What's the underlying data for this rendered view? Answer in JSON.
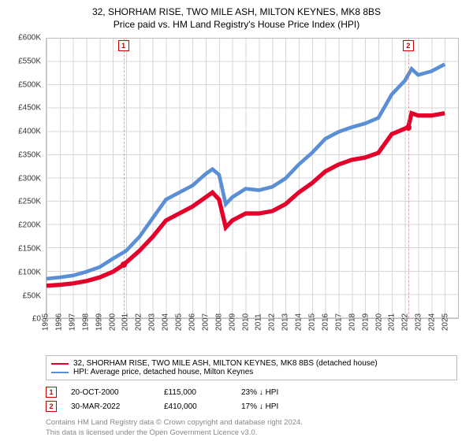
{
  "title": {
    "line1": "32, SHORHAM RISE, TWO MILE ASH, MILTON KEYNES, MK8 8BS",
    "line2": "Price paid vs. HM Land Registry's House Price Index (HPI)"
  },
  "chart": {
    "type": "line",
    "background_color": "#ffffff",
    "grid_color": "#d6d6d6",
    "border_color": "#bdbdbd",
    "ylim": [
      0,
      600000
    ],
    "ytick_step": 50000,
    "y_labels": [
      "£0",
      "£50K",
      "£100K",
      "£150K",
      "£200K",
      "£250K",
      "£300K",
      "£350K",
      "£400K",
      "£450K",
      "£500K",
      "£550K",
      "£600K"
    ],
    "xlim": [
      1995,
      2026
    ],
    "x_labels": [
      "1995",
      "1996",
      "1997",
      "1998",
      "1999",
      "2000",
      "2001",
      "2002",
      "2003",
      "2004",
      "2005",
      "2006",
      "2007",
      "2008",
      "2009",
      "2010",
      "2011",
      "2012",
      "2013",
      "2014",
      "2015",
      "2016",
      "2017",
      "2018",
      "2019",
      "2020",
      "2021",
      "2022",
      "2023",
      "2024",
      "2025"
    ],
    "series": [
      {
        "key": "property",
        "label": "32, SHORHAM RISE, TWO MILE ASH, MILTON KEYNES, MK8 8BS (detached house)",
        "color": "#e4002b",
        "line_width": 1.6,
        "data": [
          [
            1995,
            70000
          ],
          [
            1996,
            72000
          ],
          [
            1997,
            75000
          ],
          [
            1998,
            80000
          ],
          [
            1999,
            88000
          ],
          [
            2000,
            100000
          ],
          [
            2000.8,
            115000
          ],
          [
            2001,
            120000
          ],
          [
            2002,
            145000
          ],
          [
            2003,
            175000
          ],
          [
            2004,
            210000
          ],
          [
            2005,
            225000
          ],
          [
            2006,
            240000
          ],
          [
            2007,
            260000
          ],
          [
            2007.5,
            270000
          ],
          [
            2008,
            255000
          ],
          [
            2008.5,
            195000
          ],
          [
            2009,
            210000
          ],
          [
            2010,
            225000
          ],
          [
            2011,
            225000
          ],
          [
            2012,
            230000
          ],
          [
            2013,
            245000
          ],
          [
            2014,
            270000
          ],
          [
            2015,
            290000
          ],
          [
            2016,
            315000
          ],
          [
            2017,
            330000
          ],
          [
            2018,
            340000
          ],
          [
            2019,
            345000
          ],
          [
            2020,
            355000
          ],
          [
            2021,
            395000
          ],
          [
            2022.25,
            410000
          ],
          [
            2022.5,
            440000
          ],
          [
            2023,
            435000
          ],
          [
            2024,
            435000
          ],
          [
            2025,
            440000
          ]
        ]
      },
      {
        "key": "hpi",
        "label": "HPI: Average price, detached house, Milton Keynes",
        "color": "#5a8fd6",
        "line_width": 1.4,
        "data": [
          [
            1995,
            85000
          ],
          [
            1996,
            88000
          ],
          [
            1997,
            92000
          ],
          [
            1998,
            100000
          ],
          [
            1999,
            110000
          ],
          [
            2000,
            128000
          ],
          [
            2001,
            145000
          ],
          [
            2002,
            175000
          ],
          [
            2003,
            215000
          ],
          [
            2004,
            255000
          ],
          [
            2005,
            270000
          ],
          [
            2006,
            285000
          ],
          [
            2007,
            310000
          ],
          [
            2007.5,
            320000
          ],
          [
            2008,
            308000
          ],
          [
            2008.5,
            245000
          ],
          [
            2009,
            260000
          ],
          [
            2010,
            278000
          ],
          [
            2011,
            275000
          ],
          [
            2012,
            282000
          ],
          [
            2013,
            300000
          ],
          [
            2014,
            330000
          ],
          [
            2015,
            355000
          ],
          [
            2016,
            385000
          ],
          [
            2017,
            400000
          ],
          [
            2018,
            410000
          ],
          [
            2019,
            418000
          ],
          [
            2020,
            430000
          ],
          [
            2021,
            480000
          ],
          [
            2022,
            510000
          ],
          [
            2022.5,
            535000
          ],
          [
            2023,
            522000
          ],
          [
            2024,
            530000
          ],
          [
            2025,
            545000
          ]
        ]
      }
    ],
    "markers": [
      {
        "id": "1",
        "x": 2000.8,
        "y": 115000,
        "label_top": true
      },
      {
        "id": "2",
        "x": 2022.25,
        "y": 410000,
        "label_top": true
      }
    ],
    "marker_box_border": "#cc0000",
    "marker_box_text": "#cc0000",
    "marker_line_color": "#cc6666",
    "marker_dot_color": "#e4002b",
    "label_fontsize": 10
  },
  "legend": {
    "border_color": "#bdbdbd",
    "fontsize": 10
  },
  "sales": [
    {
      "id": "1",
      "date": "20-OCT-2000",
      "price": "£115,000",
      "pct": "23% ↓ HPI"
    },
    {
      "id": "2",
      "date": "30-MAR-2022",
      "price": "£410,000",
      "pct": "17% ↓ HPI"
    }
  ],
  "footer": {
    "line1": "Contains HM Land Registry data © Crown copyright and database right 2024.",
    "line2": "This data is licensed under the Open Government Licence v3.0."
  }
}
